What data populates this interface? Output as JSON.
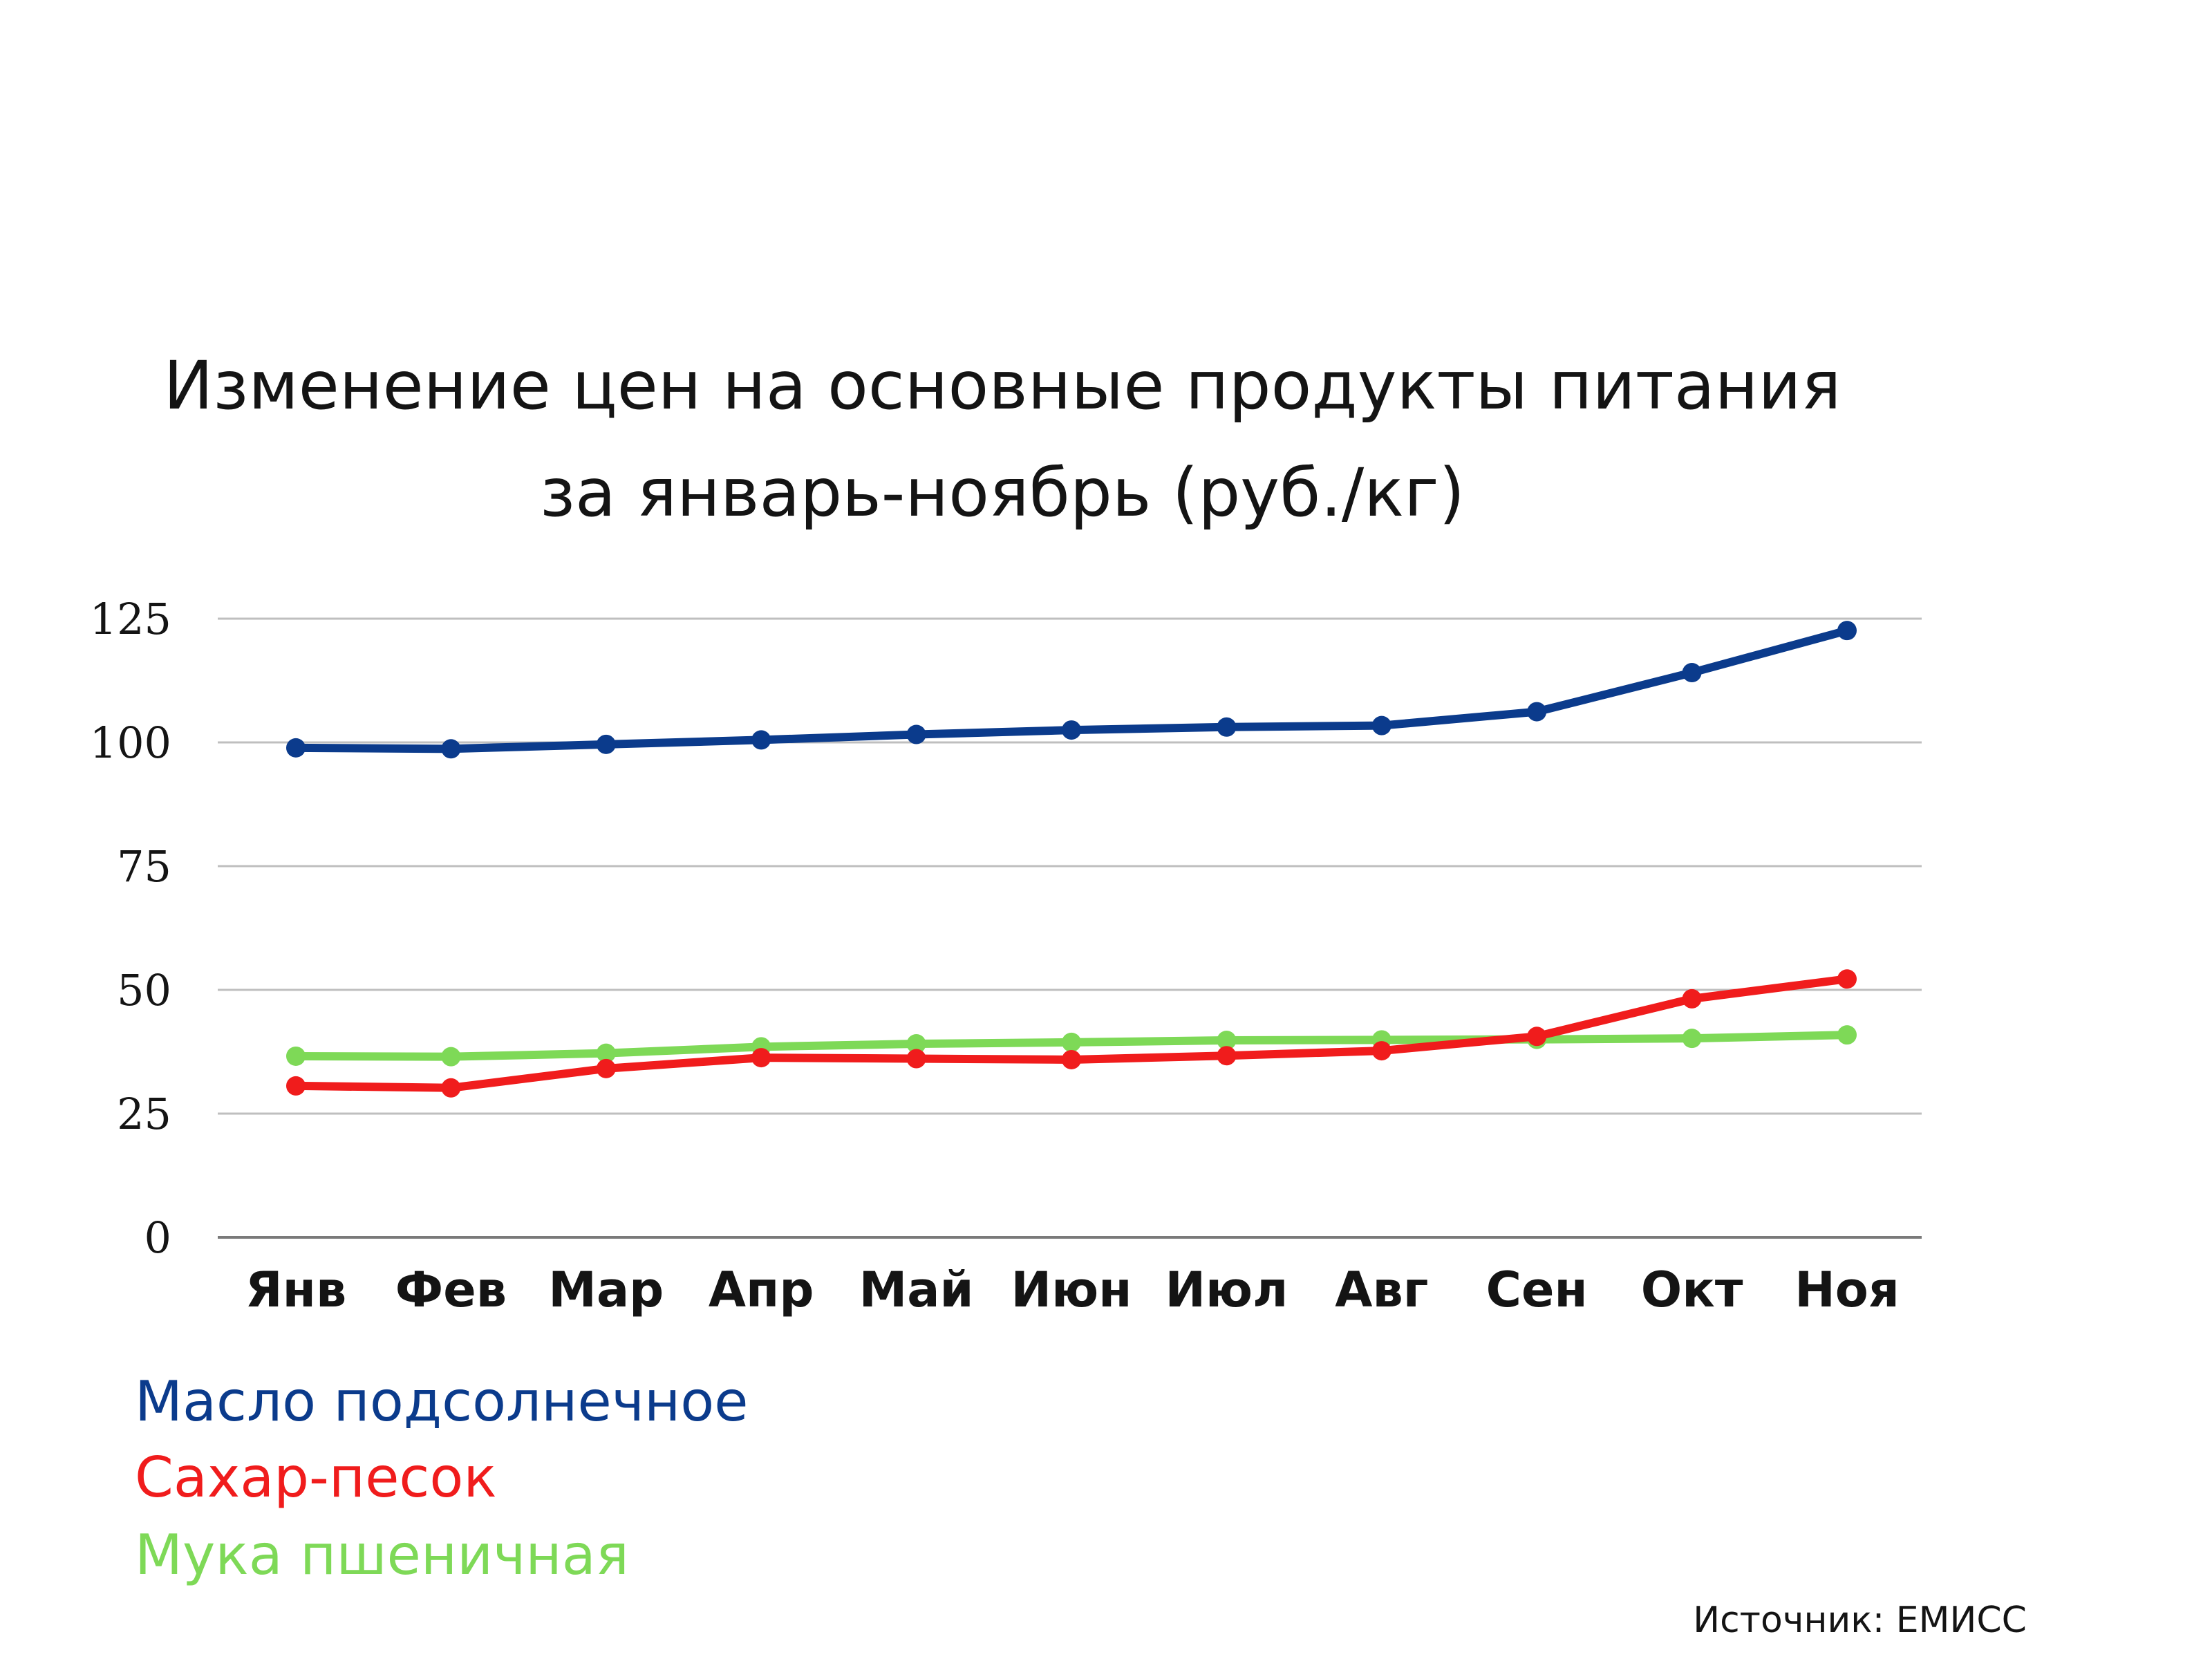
{
  "chart_data": {
    "type": "line",
    "title_lines": [
      "Изменение цен на основные продукты питания",
      "за  январь-ноябрь (руб./кг)"
    ],
    "categories": [
      "Янв",
      "Фев",
      "Мар",
      "Апр",
      "Май",
      "Июн",
      "Июл",
      "Авг",
      "Сен",
      "Окт",
      "Ноя"
    ],
    "series": [
      {
        "name": "Масло подсолнечное",
        "color": "#0B3B8C",
        "values": [
          98.9,
          98.7,
          99.6,
          100.5,
          101.6,
          102.5,
          103.1,
          103.4,
          106.2,
          114.1,
          122.6
        ]
      },
      {
        "name": "Сахар-песок",
        "color": "#F01C1C",
        "values": [
          30.6,
          30.2,
          34.1,
          36.3,
          36.1,
          35.9,
          36.7,
          37.7,
          40.6,
          48.2,
          52.2
        ]
      },
      {
        "name": "Мука пшеничная",
        "color": "#7ED957",
        "values": [
          36.6,
          36.5,
          37.2,
          38.5,
          39.1,
          39.4,
          39.8,
          39.9,
          40.0,
          40.2,
          40.9
        ]
      }
    ],
    "y_ticks": [
      "0",
      "25",
      "50",
      "75",
      "100",
      "125"
    ],
    "ylim": [
      0,
      125
    ],
    "grid": true,
    "legend_position": "bottom-left"
  },
  "source_label": "Источник: ЕМИСС",
  "colors": {
    "gridline": "#BFBFBF",
    "text": "#141414"
  }
}
